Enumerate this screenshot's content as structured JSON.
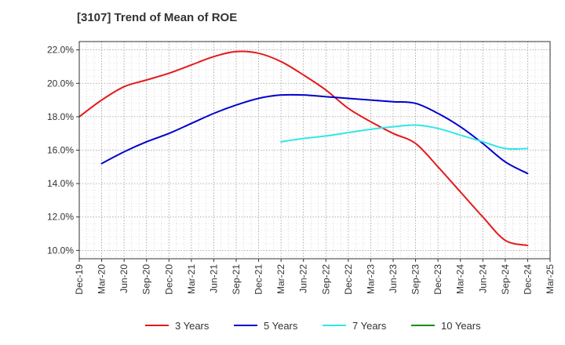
{
  "chart_data": {
    "type": "line",
    "title": "[3107]  Trend of Mean of ROE",
    "x_ticks": [
      "Dec-19",
      "Mar-20",
      "Jun-20",
      "Sep-20",
      "Dec-20",
      "Mar-21",
      "Jun-21",
      "Sep-21",
      "Dec-21",
      "Mar-22",
      "Jun-22",
      "Sep-22",
      "Dec-22",
      "Mar-23",
      "Jun-23",
      "Sep-23",
      "Dec-23",
      "Mar-24",
      "Jun-24",
      "Sep-24",
      "Dec-24",
      "Mar-25"
    ],
    "y_ticks": [
      "10.0%",
      "12.0%",
      "14.0%",
      "16.0%",
      "18.0%",
      "20.0%",
      "22.0%"
    ],
    "ylim": [
      9.5,
      22.5
    ],
    "grid": true,
    "legend_position": "bottom",
    "series": [
      {
        "name": "3 Years",
        "color": "#e31a1c",
        "x": [
          "Dec-19",
          "Mar-20",
          "Jun-20",
          "Sep-20",
          "Dec-20",
          "Mar-21",
          "Jun-21",
          "Sep-21",
          "Dec-21",
          "Mar-22",
          "Jun-22",
          "Sep-22",
          "Dec-22",
          "Mar-23",
          "Jun-23",
          "Sep-23",
          "Dec-23",
          "Mar-24",
          "Jun-24",
          "Sep-24",
          "Dec-24"
        ],
        "values": [
          18.0,
          19.0,
          19.8,
          20.2,
          20.6,
          21.1,
          21.6,
          21.9,
          21.8,
          21.3,
          20.5,
          19.6,
          18.5,
          17.7,
          17.0,
          16.4,
          15.0,
          13.5,
          12.0,
          10.6,
          10.3
        ]
      },
      {
        "name": "5 Years",
        "color": "#0000cc",
        "x": [
          "Mar-20",
          "Jun-20",
          "Sep-20",
          "Dec-20",
          "Mar-21",
          "Jun-21",
          "Sep-21",
          "Dec-21",
          "Mar-22",
          "Jun-22",
          "Sep-22",
          "Dec-22",
          "Mar-23",
          "Jun-23",
          "Sep-23",
          "Dec-23",
          "Mar-24",
          "Jun-24",
          "Sep-24",
          "Dec-24"
        ],
        "values": [
          15.2,
          15.9,
          16.5,
          17.0,
          17.6,
          18.2,
          18.7,
          19.1,
          19.3,
          19.3,
          19.2,
          19.1,
          19.0,
          18.9,
          18.8,
          18.2,
          17.4,
          16.4,
          15.3,
          14.6
        ]
      },
      {
        "name": "7 Years",
        "color": "#33e6e6",
        "x": [
          "Mar-22",
          "Jun-22",
          "Sep-22",
          "Dec-22",
          "Mar-23",
          "Jun-23",
          "Sep-23",
          "Dec-23",
          "Mar-24",
          "Jun-24",
          "Sep-24",
          "Dec-24"
        ],
        "values": [
          16.5,
          16.7,
          16.85,
          17.05,
          17.25,
          17.4,
          17.5,
          17.3,
          16.9,
          16.5,
          16.1,
          16.1
        ]
      },
      {
        "name": "10 Years",
        "color": "#1a8c1a",
        "x": [],
        "values": []
      }
    ]
  }
}
